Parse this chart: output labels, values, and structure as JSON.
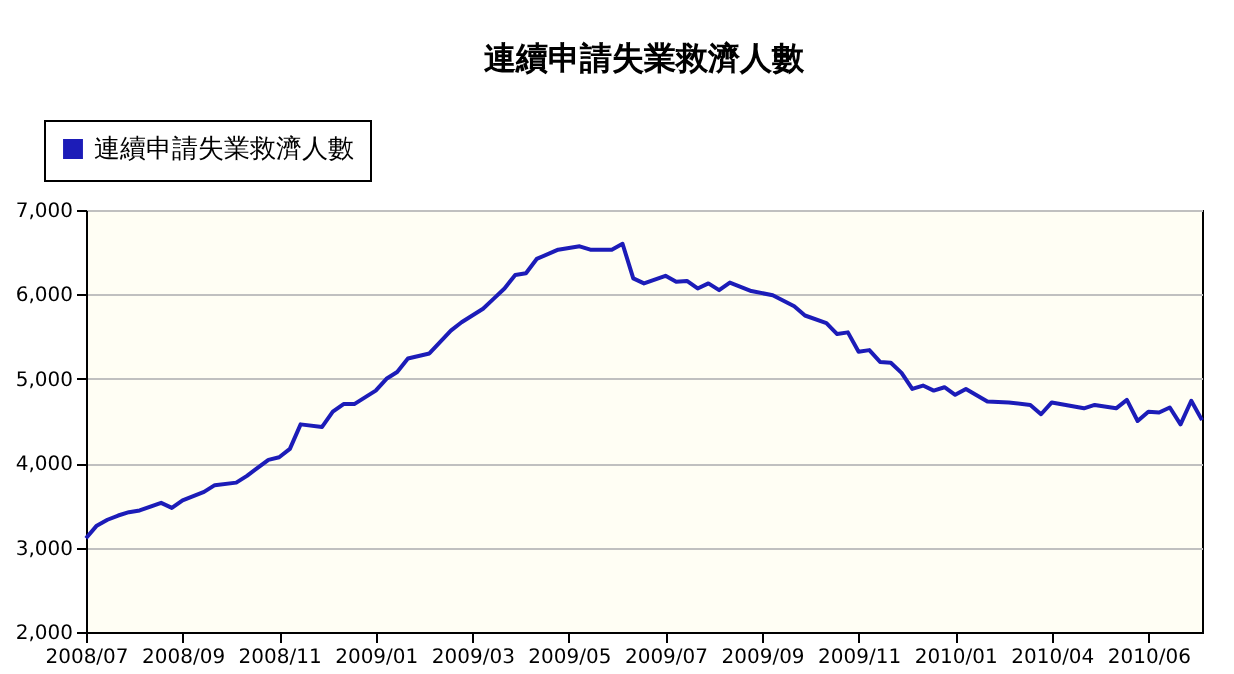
{
  "chart_data": {
    "type": "line",
    "title": "連續申請失業救濟人數",
    "x": [
      "2008-07-12",
      "2008-07-19",
      "2008-07-26",
      "2008-08-02",
      "2008-08-09",
      "2008-08-16",
      "2008-08-30",
      "2008-09-06",
      "2008-09-13",
      "2008-09-27",
      "2008-10-04",
      "2008-10-18",
      "2008-10-25",
      "2008-11-08",
      "2008-11-15",
      "2008-11-22",
      "2008-11-29",
      "2008-12-13",
      "2008-12-20",
      "2008-12-27",
      "2009-01-03",
      "2009-01-17",
      "2009-01-24",
      "2009-01-31",
      "2009-02-07",
      "2009-02-21",
      "2009-03-07",
      "2009-03-14",
      "2009-03-28",
      "2009-04-04",
      "2009-04-11",
      "2009-04-18",
      "2009-04-25",
      "2009-05-02",
      "2009-05-16",
      "2009-05-30",
      "2009-06-06",
      "2009-06-20",
      "2009-06-27",
      "2009-07-04",
      "2009-07-11",
      "2009-07-25",
      "2009-08-01",
      "2009-08-08",
      "2009-08-15",
      "2009-08-22",
      "2009-08-29",
      "2009-09-05",
      "2009-09-19",
      "2009-10-03",
      "2009-10-17",
      "2009-10-24",
      "2009-11-07",
      "2009-11-14",
      "2009-11-21",
      "2009-11-28",
      "2009-12-05",
      "2009-12-12",
      "2009-12-19",
      "2009-12-26",
      "2010-01-02",
      "2010-01-09",
      "2010-01-16",
      "2010-01-23",
      "2010-01-30",
      "2010-02-06",
      "2010-02-20",
      "2010-03-06",
      "2010-03-20",
      "2010-03-27",
      "2010-04-03",
      "2010-04-24",
      "2010-05-01",
      "2010-05-15",
      "2010-05-22",
      "2010-05-29",
      "2010-06-05",
      "2010-06-12",
      "2010-06-19",
      "2010-06-26",
      "2010-07-03",
      "2010-07-10"
    ],
    "series": [
      {
        "name": "連續申請失業救濟人數",
        "color": "#1c1cb8",
        "values": [
          3110,
          3260,
          3330,
          3380,
          3420,
          3440,
          3530,
          3470,
          3560,
          3660,
          3740,
          3770,
          3850,
          4040,
          4070,
          4170,
          4460,
          4430,
          4610,
          4700,
          4700,
          4860,
          5000,
          5080,
          5240,
          5300,
          5570,
          5670,
          5830,
          5950,
          6070,
          6230,
          6250,
          6420,
          6530,
          6570,
          6530,
          6530,
          6600,
          6190,
          6130,
          6220,
          6150,
          6160,
          6070,
          6130,
          6050,
          6140,
          6040,
          5990,
          5860,
          5750,
          5660,
          5530,
          5550,
          5320,
          5340,
          5200,
          5190,
          5070,
          4880,
          4920,
          4860,
          4900,
          4810,
          4880,
          4730,
          4720,
          4690,
          4580,
          4720,
          4650,
          4690,
          4650,
          4750,
          4500,
          4610,
          4600,
          4660,
          4460,
          4740,
          4510
        ]
      }
    ],
    "xlim": [
      "2008-07-12",
      "2010-07-10"
    ],
    "xticks": [
      {
        "value": "2008-07-12",
        "label": "2008/07"
      },
      {
        "value": "2008-09-13",
        "label": "2008/09"
      },
      {
        "value": "2008-11-15",
        "label": "2008/11"
      },
      {
        "value": "2009-01-17",
        "label": "2009/01"
      },
      {
        "value": "2009-03-21",
        "label": "2009/03"
      },
      {
        "value": "2009-05-23",
        "label": "2009/05"
      },
      {
        "value": "2009-07-25",
        "label": "2009/07"
      },
      {
        "value": "2009-09-26",
        "label": "2009/09"
      },
      {
        "value": "2009-11-28",
        "label": "2009/11"
      },
      {
        "value": "2010-01-30",
        "label": "2010/01"
      },
      {
        "value": "2010-04-03",
        "label": "2010/04"
      },
      {
        "value": "2010-06-05",
        "label": "2010/06"
      }
    ],
    "ylim": [
      2000,
      7000
    ],
    "yticks": [
      {
        "value": 2000,
        "label": "2,000"
      },
      {
        "value": 3000,
        "label": "3,000"
      },
      {
        "value": 4000,
        "label": "4,000"
      },
      {
        "value": 5000,
        "label": "5,000"
      },
      {
        "value": 6000,
        "label": "6,000"
      },
      {
        "value": 7000,
        "label": "7,000"
      }
    ],
    "grid": "y",
    "legend": "top left",
    "marker": "none",
    "line_style": "solid"
  }
}
